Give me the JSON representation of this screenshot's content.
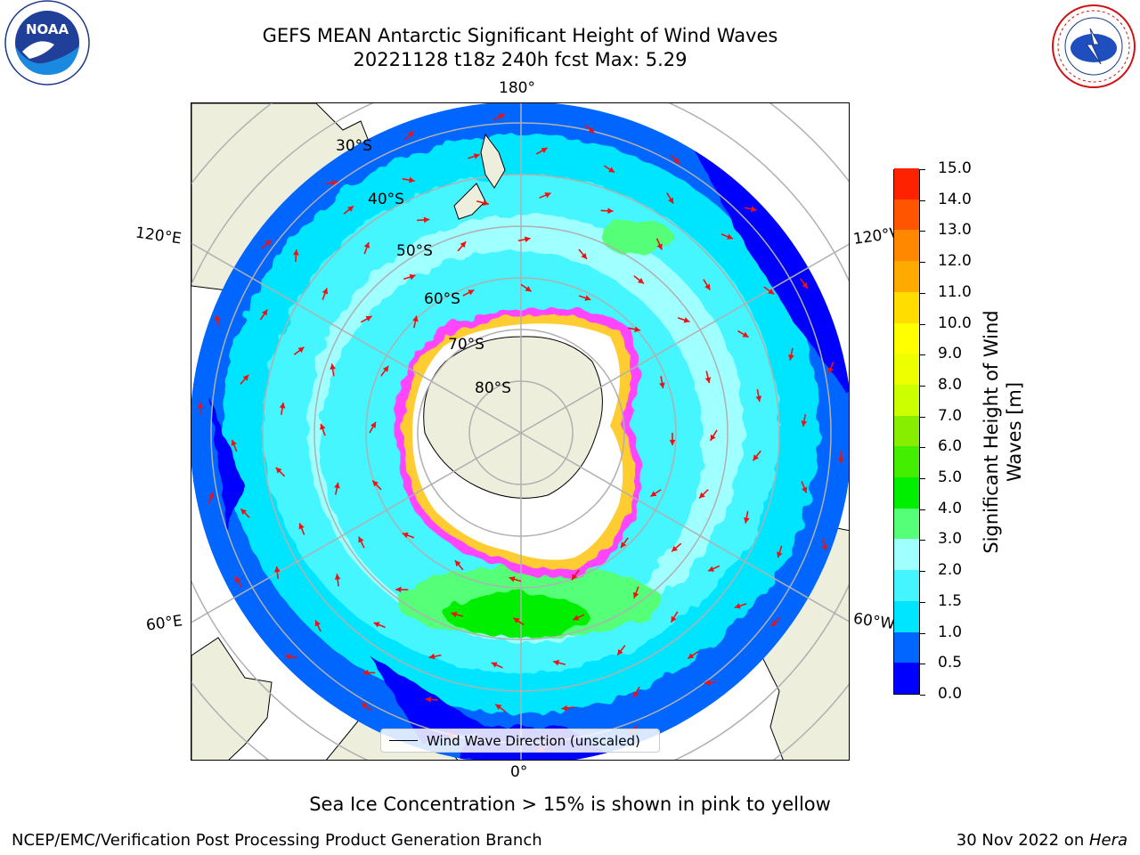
{
  "title": {
    "line1": "GEFS MEAN Antarctic Significant Height of Wind Waves",
    "line2": "20221128 t18z 240h fcst   Max: 5.29"
  },
  "map": {
    "lon_labels": {
      "top": "180°",
      "bottom": "0°",
      "left_upper": "120°E",
      "left_lower": "60°E",
      "right_upper": "120°W",
      "right_lower": "60°W"
    },
    "lat_labels": [
      "30°S",
      "40°S",
      "50°S",
      "60°S",
      "70°S",
      "80°S"
    ],
    "legend_label": "Wind Wave Direction (unscaled)",
    "colors": {
      "land": "#eeeedd",
      "ice_edge_pink": "#ff44ff",
      "ice_edge_yellow": "#ffcc33",
      "arrow": "#ee1111"
    }
  },
  "colorbar": {
    "title_line1": "Significant Height of Wind",
    "title_line2": "Waves [m]",
    "ticks": [
      "15.0",
      "14.0",
      "13.0",
      "12.0",
      "11.0",
      "10.0",
      "9.0",
      "8.0",
      "7.0",
      "6.0",
      "5.0",
      "4.0",
      "3.0",
      "2.0",
      "1.5",
      "1.0",
      "0.5",
      "0.0"
    ],
    "colors_bottom_to_top": [
      "#0000ff",
      "#0066ff",
      "#00e5ff",
      "#44f5ff",
      "#a0ffff",
      "#55ff77",
      "#00ee00",
      "#44ee00",
      "#88ee00",
      "#ccff00",
      "#eeff00",
      "#ffff00",
      "#ffdd00",
      "#ffaa00",
      "#ff8800",
      "#ff5500",
      "#ff2200"
    ]
  },
  "note": "Sea Ice Concentration > 15% is shown in pink to yellow",
  "footer": {
    "left": "NCEP/EMC/Verification Post Processing Product Generation Branch",
    "right_prefix": "30 Nov 2022 on ",
    "right_italic": "Hera"
  },
  "logos": {
    "noaa": "NOAA",
    "nws": "NATIONAL WEATHER SERVICE"
  }
}
